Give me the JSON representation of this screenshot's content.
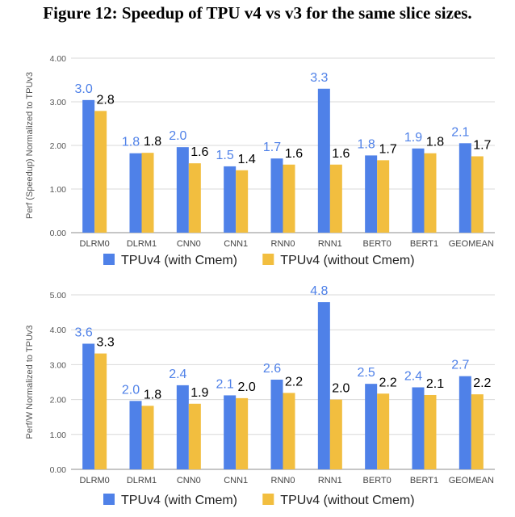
{
  "figure": {
    "title": "Figure 12: Speedup of TPU v4 vs v3 for the same slice sizes."
  },
  "chart_data": [
    {
      "type": "bar",
      "title": "",
      "xlabel": "",
      "ylabel": "Perf (Speedup) Normalized to TPUv3",
      "ylim": [
        0,
        4
      ],
      "yticks": [
        "0.00",
        "1.00",
        "2.00",
        "3.00",
        "4.00"
      ],
      "grid": true,
      "legend_position": "bottom",
      "categories": [
        "DLRM0",
        "DLRM1",
        "CNN0",
        "CNN1",
        "RNN0",
        "RNN1",
        "BERT0",
        "BERT1",
        "GEOMEAN"
      ],
      "series": [
        {
          "name": "TPUv4 (with Cmem)",
          "color": "#4F81E8",
          "label_color": "#4F81E8",
          "values": [
            3.04,
            1.82,
            1.96,
            1.52,
            1.7,
            3.3,
            1.77,
            1.93,
            2.05
          ],
          "labels": [
            "3.0",
            "1.8",
            "2.0",
            "1.5",
            "1.7",
            "3.3",
            "1.8",
            "1.9",
            "2.1"
          ]
        },
        {
          "name": "TPUv4 (without Cmem)",
          "color": "#F2BE3F",
          "label_color": "#000000",
          "values": [
            2.79,
            1.83,
            1.59,
            1.43,
            1.56,
            1.56,
            1.66,
            1.82,
            1.75
          ],
          "labels": [
            "2.8",
            "1.8",
            "1.6",
            "1.4",
            "1.6",
            "1.6",
            "1.7",
            "1.8",
            "1.7"
          ]
        }
      ]
    },
    {
      "type": "bar",
      "title": "",
      "xlabel": "",
      "ylabel": "Perf/W Normalized to TPUv3",
      "ylim": [
        0,
        5
      ],
      "yticks": [
        "0.00",
        "1.00",
        "2.00",
        "3.00",
        "4.00",
        "5.00"
      ],
      "grid": true,
      "legend_position": "bottom",
      "categories": [
        "DLRM0",
        "DLRM1",
        "CNN0",
        "CNN1",
        "RNN0",
        "RNN1",
        "BERT0",
        "BERT1",
        "GEOMEAN"
      ],
      "series": [
        {
          "name": "TPUv4 (with Cmem)",
          "color": "#4F81E8",
          "label_color": "#4F81E8",
          "values": [
            3.6,
            1.96,
            2.41,
            2.12,
            2.57,
            4.79,
            2.45,
            2.35,
            2.67
          ],
          "labels": [
            "3.6",
            "2.0",
            "2.4",
            "2.1",
            "2.6",
            "4.8",
            "2.5",
            "2.4",
            "2.7"
          ]
        },
        {
          "name": "TPUv4 (without Cmem)",
          "color": "#F2BE3F",
          "label_color": "#000000",
          "values": [
            3.32,
            1.82,
            1.88,
            2.04,
            2.19,
            2.0,
            2.17,
            2.13,
            2.15
          ],
          "labels": [
            "3.3",
            "1.8",
            "1.9",
            "2.0",
            "2.2",
            "2.0",
            "2.2",
            "2.1",
            "2.2"
          ]
        }
      ]
    }
  ]
}
